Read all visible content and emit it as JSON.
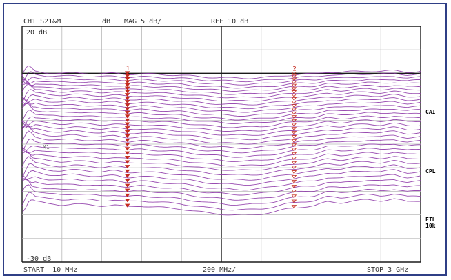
{
  "header": {
    "channel": "CH1",
    "parameter": "S21&M",
    "unit": "dB",
    "format": "MAG",
    "scale": "5 dB/",
    "ref": "REF 10 dB"
  },
  "axis": {
    "top_label": "20 dB",
    "bottom_label": "-30 dB",
    "start": "START  10 MHz",
    "span_per_div": "200 MHz/",
    "stop": "STOP 3 GHz"
  },
  "mid_label": "M1",
  "side_labels": {
    "cal": "CAI",
    "cpl": "CPL",
    "fil": "FIL",
    "fil_value": "10k"
  },
  "colors": {
    "trace": "#8e3aa8",
    "grid": "#b8b8b8",
    "grid_major": "#1a1a1a",
    "marker": "#c42a1f",
    "side_label": "#2f9a3a",
    "frame": "#2f3f86"
  },
  "chart_data": {
    "type": "line",
    "title": "",
    "xlabel": "",
    "ylabel": "",
    "x_unit": "MHz",
    "y_unit": "dB",
    "xlim": [
      10,
      3000
    ],
    "ylim": [
      -30,
      20
    ],
    "grid": true,
    "reference_level": 10,
    "trace_count": 34,
    "top_trace_db": 10,
    "trace_spacing_db": 0.6,
    "x": [
      10,
      60,
      100,
      200,
      300,
      400,
      500,
      600,
      700,
      800,
      900,
      1000,
      1100,
      1200,
      1300,
      1400,
      1500,
      1600,
      1700,
      1800,
      1900,
      2000,
      2100,
      2200,
      2300,
      2400,
      2500,
      2600,
      2700,
      2800,
      2900,
      3000
    ],
    "top_trace_values": [
      10.2,
      10.6,
      10.4,
      10.1,
      10.0,
      10.1,
      10.0,
      9.9,
      10.0,
      9.8,
      9.9,
      9.8,
      9.7,
      9.6,
      9.4,
      9.2,
      9.1,
      9.0,
      9.0,
      9.1,
      9.3,
      9.6,
      9.8,
      9.9,
      10.3,
      10.2,
      10.4,
      10.5,
      10.4,
      10.6,
      10.3,
      10.4
    ],
    "markers": [
      {
        "label": "1",
        "x": 800
      },
      {
        "label": "2",
        "x": 2050
      }
    ]
  }
}
